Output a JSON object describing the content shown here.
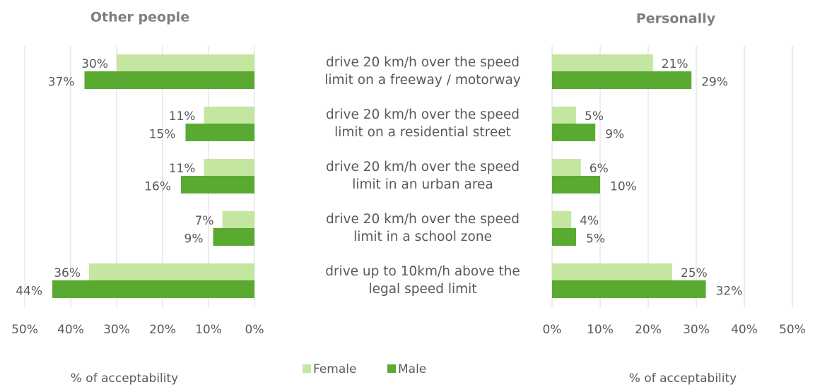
{
  "chart_data": [
    {
      "type": "bar",
      "title": "Other people",
      "xlabel": "% of acceptability",
      "xlim": [
        50,
        0
      ],
      "xticks": [
        {
          "value": 50,
          "label": "50%"
        },
        {
          "value": 40,
          "label": "40%"
        },
        {
          "value": 30,
          "label": "30%"
        },
        {
          "value": 20,
          "label": "20%"
        },
        {
          "value": 10,
          "label": "10%"
        },
        {
          "value": 0,
          "label": "0%"
        }
      ],
      "grid": true,
      "series": [
        {
          "name": "Female",
          "color": "#c5e6a0",
          "values": [
            30,
            11,
            11,
            7,
            36
          ],
          "value_labels": [
            "30%",
            "11%",
            "11%",
            "7%",
            "36%"
          ]
        },
        {
          "name": "Male",
          "color": "#5aaa32",
          "values": [
            37,
            15,
            16,
            9,
            44
          ],
          "value_labels": [
            "37%",
            "15%",
            "16%",
            "9%",
            "44%"
          ]
        }
      ]
    },
    {
      "type": "bar",
      "title": "Personally",
      "xlabel": "% of acceptability",
      "categories": [
        "drive 20 km/h over the speed\nlimit on a freeway / motorway",
        "drive 20 km/h over the speed\nlimit on a residential street",
        "drive 20 km/h over the speed\nlimit in an urban area",
        "drive 20 km/h over the speed\nlimit in a school zone",
        "drive up to 10km/h above the\nlegal speed limit"
      ],
      "xlim": [
        0,
        50
      ],
      "xticks": [
        {
          "value": 0,
          "label": "0%"
        },
        {
          "value": 10,
          "label": "10%"
        },
        {
          "value": 20,
          "label": "20%"
        },
        {
          "value": 30,
          "label": "30%"
        },
        {
          "value": 40,
          "label": "40%"
        },
        {
          "value": 50,
          "label": "50%"
        }
      ],
      "grid": true,
      "series": [
        {
          "color": "#c5e6a0",
          "values": [
            21,
            5,
            6,
            4,
            25
          ],
          "value_labels": [
            "21%",
            "5%",
            "6%",
            "4%",
            "25%"
          ]
        },
        {
          "color": "#5aaa32",
          "values": [
            29,
            9,
            10,
            5,
            32
          ],
          "value_labels": [
            "29%",
            "9%",
            "10%",
            "5%",
            "32%"
          ]
        }
      ]
    }
  ]
}
